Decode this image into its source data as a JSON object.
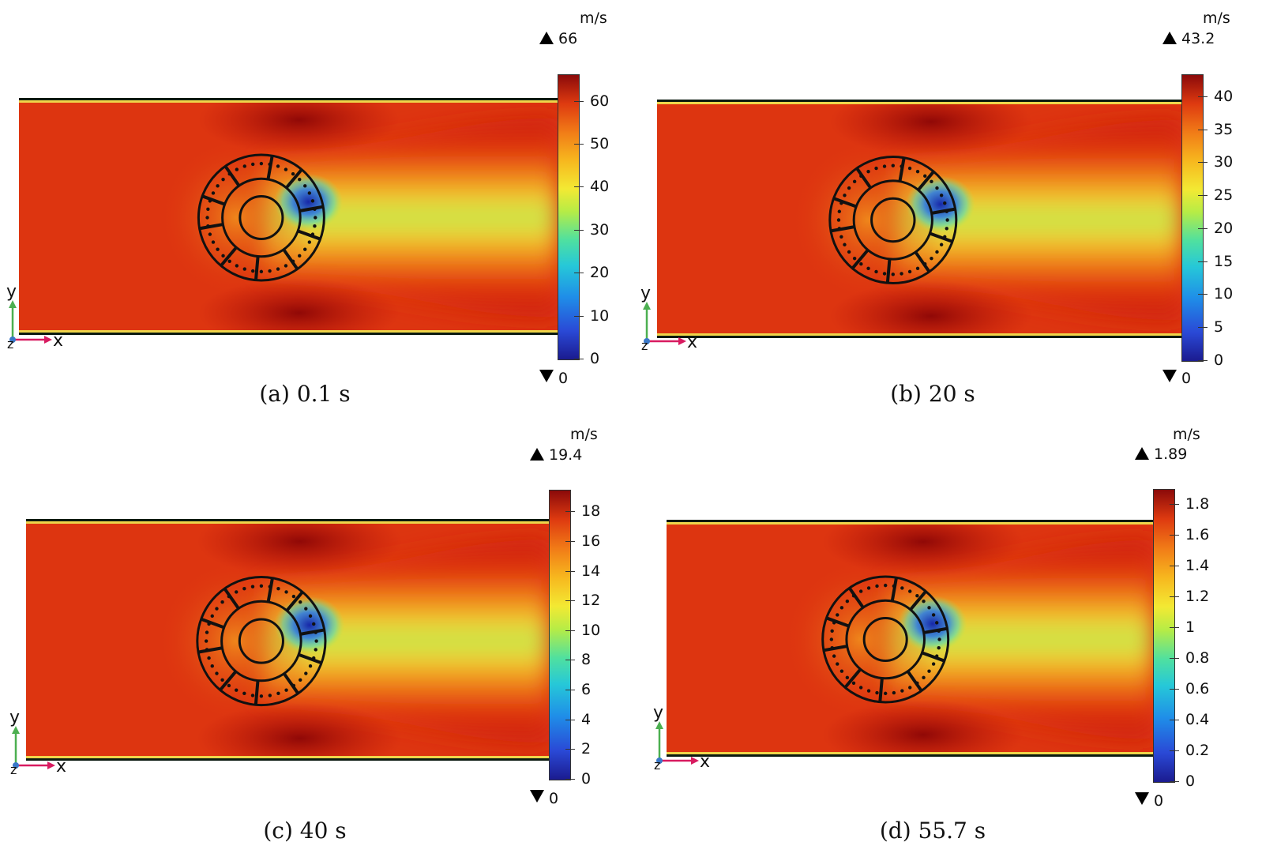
{
  "unit": "m/s",
  "axis_labels": {
    "x": "x",
    "y": "y",
    "z": "z"
  },
  "panels": [
    {
      "id": "a",
      "caption": "(a) 0.1 s",
      "max_label": "66",
      "min_label": "0",
      "colorbar_max": 66,
      "ticks": [
        "0",
        "10",
        "20",
        "30",
        "40",
        "50",
        "60"
      ],
      "tick_values": [
        0,
        10,
        20,
        30,
        40,
        50,
        60
      ]
    },
    {
      "id": "b",
      "caption": "(b) 20 s",
      "max_label": "43.2",
      "min_label": "0",
      "colorbar_max": 43.2,
      "ticks": [
        "0",
        "5",
        "10",
        "15",
        "20",
        "25",
        "30",
        "35",
        "40"
      ],
      "tick_values": [
        0,
        5,
        10,
        15,
        20,
        25,
        30,
        35,
        40
      ]
    },
    {
      "id": "c",
      "caption": "(c) 40 s",
      "max_label": "19.4",
      "min_label": "0",
      "colorbar_max": 19.4,
      "ticks": [
        "0",
        "2",
        "4",
        "6",
        "8",
        "10",
        "12",
        "14",
        "16",
        "18"
      ],
      "tick_values": [
        0,
        2,
        4,
        6,
        8,
        10,
        12,
        14,
        16,
        18
      ]
    },
    {
      "id": "d",
      "caption": "(d) 55.7 s",
      "max_label": "1.89",
      "min_label": "0",
      "colorbar_max": 1.89,
      "ticks": [
        "0",
        "0.2",
        "0.4",
        "0.6",
        "0.8",
        "1",
        "1.2",
        "1.4",
        "1.6",
        "1.8"
      ],
      "tick_values": [
        0,
        0.2,
        0.4,
        0.6,
        0.8,
        1,
        1.2,
        1.4,
        1.6,
        1.8
      ]
    }
  ]
}
